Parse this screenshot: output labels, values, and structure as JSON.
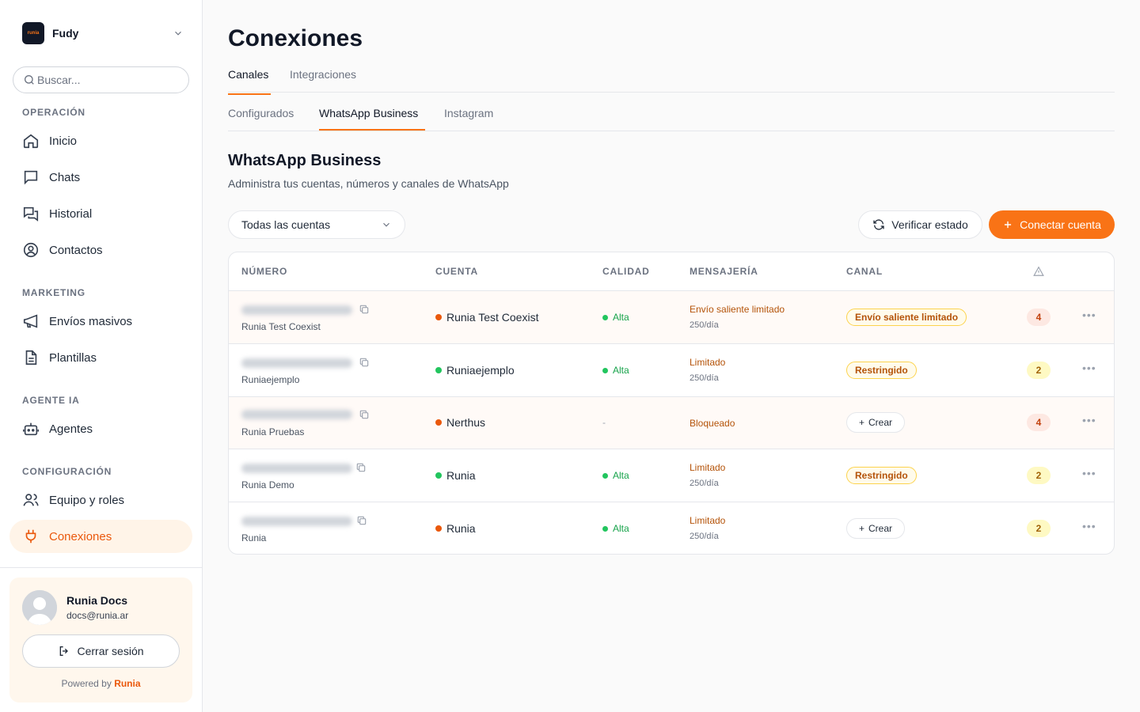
{
  "workspace": {
    "name": "Fudy",
    "logo_text": "runia"
  },
  "search": {
    "placeholder": "Buscar..."
  },
  "nav": {
    "sections": [
      {
        "label": "OPERACIÓN"
      },
      {
        "label": "MARKETING"
      },
      {
        "label": "AGENTE IA"
      },
      {
        "label": "CONFIGURACIÓN"
      }
    ],
    "items": [
      {
        "label": "Inicio",
        "icon": "home-icon"
      },
      {
        "label": "Chats",
        "icon": "chat-icon"
      },
      {
        "label": "Historial",
        "icon": "history-icon"
      },
      {
        "label": "Contactos",
        "icon": "contact-icon"
      },
      {
        "label": "Envíos masivos",
        "icon": "megaphone-icon"
      },
      {
        "label": "Plantillas",
        "icon": "document-icon"
      },
      {
        "label": "Agentes",
        "icon": "bot-icon"
      },
      {
        "label": "Equipo y roles",
        "icon": "users-icon"
      },
      {
        "label": "Conexiones",
        "icon": "plug-icon"
      }
    ]
  },
  "user": {
    "name": "Runia Docs",
    "email": "docs@runia.ar",
    "logout_label": "Cerrar sesión",
    "powered_by": "Powered by",
    "brand": "Runia"
  },
  "page": {
    "title": "Conexiones",
    "tabs": [
      {
        "label": "Canales"
      },
      {
        "label": "Integraciones"
      }
    ],
    "subtabs": [
      {
        "label": "Configurados"
      },
      {
        "label": "WhatsApp Business"
      },
      {
        "label": "Instagram"
      }
    ],
    "section_title": "WhatsApp Business",
    "section_subtitle": "Administra tus cuentas, números y canales de WhatsApp",
    "filter_value": "Todas las cuentas",
    "verify_label": "Verificar estado",
    "connect_label": "Conectar cuenta"
  },
  "table": {
    "headers": {
      "number": "NÚMERO",
      "account": "CUENTA",
      "quality": "CALIDAD",
      "messaging": "MENSAJERÍA",
      "channel": "CANAL"
    },
    "rows": [
      {
        "number_label": "Runia Test Coexist",
        "account": "Runia Test Coexist",
        "account_status_color": "#ea580c",
        "quality": "Alta",
        "messaging": "Envío saliente limitado",
        "messaging_sub": "250/día",
        "channel": "Envío saliente limitado",
        "channel_type": "badge",
        "count": "4",
        "count_color": "red"
      },
      {
        "number_label": "Runiaejemplo",
        "account": "Runiaejemplo",
        "account_status_color": "#22c55e",
        "quality": "Alta",
        "messaging": "Limitado",
        "messaging_sub": "250/día",
        "channel": "Restringido",
        "channel_type": "badge",
        "count": "2",
        "count_color": "yellow"
      },
      {
        "number_label": "Runia Pruebas",
        "account": "Nerthus",
        "account_status_color": "#ea580c",
        "quality": "-",
        "messaging": "Bloqueado",
        "messaging_sub": "",
        "channel": "Crear",
        "channel_type": "button",
        "count": "4",
        "count_color": "red"
      },
      {
        "number_label": "Runia Demo",
        "account": "Runia",
        "account_status_color": "#22c55e",
        "quality": "Alta",
        "messaging": "Limitado",
        "messaging_sub": "250/día",
        "channel": "Restringido",
        "channel_type": "badge",
        "count": "2",
        "count_color": "yellow"
      },
      {
        "number_label": "Runia",
        "account": "Runia",
        "account_status_color": "#ea580c",
        "quality": "Alta",
        "messaging": "Limitado",
        "messaging_sub": "250/día",
        "channel": "Crear",
        "channel_type": "button",
        "count": "2",
        "count_color": "yellow"
      }
    ]
  },
  "colors": {
    "accent": "#f97316",
    "success": "#22c55e",
    "warning": "#b45309"
  }
}
